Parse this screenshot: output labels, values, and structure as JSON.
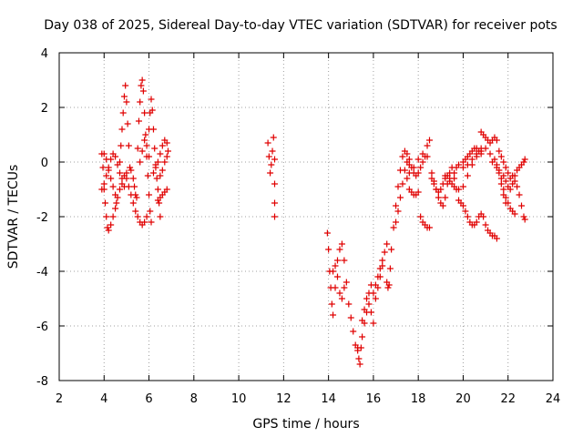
{
  "chart_data": {
    "type": "scatter",
    "title": "Day 038 of 2025, Sidereal Day-to-day VTEC variation (SDTVAR) for receiver pots",
    "xlabel": "GPS time / hours",
    "ylabel": "SDTVAR / TECUs",
    "xlim": [
      2,
      24
    ],
    "ylim": [
      -8,
      4
    ],
    "xticks": [
      "2",
      "4",
      "6",
      "8",
      "10",
      "12",
      "14",
      "16",
      "18",
      "20",
      "22",
      "24"
    ],
    "yticks": [
      "-8",
      "-6",
      "-4",
      "-2",
      "0",
      "2",
      "4"
    ],
    "grid": true,
    "marker": "plus",
    "color": "#e00000",
    "series": [
      {
        "name": "SDTVAR",
        "points": [
          [
            3.9,
            0.3
          ],
          [
            3.95,
            -0.2
          ],
          [
            4.0,
            -1.0
          ],
          [
            4.05,
            -1.5
          ],
          [
            4.1,
            -2.0
          ],
          [
            4.15,
            -2.4
          ],
          [
            4.2,
            -2.5
          ],
          [
            4.3,
            -2.3
          ],
          [
            4.4,
            -2.0
          ],
          [
            4.5,
            -1.7
          ],
          [
            4.6,
            -1.3
          ],
          [
            4.7,
            -1.0
          ],
          [
            4.8,
            -0.8
          ],
          [
            4.9,
            -0.5
          ],
          [
            5.0,
            -0.4
          ],
          [
            3.9,
            -1.0
          ],
          [
            4.0,
            -0.8
          ],
          [
            4.1,
            -0.5
          ],
          [
            4.2,
            -0.2
          ],
          [
            4.3,
            0.1
          ],
          [
            4.4,
            0.3
          ],
          [
            4.5,
            0.2
          ],
          [
            4.6,
            -0.1
          ],
          [
            4.7,
            -0.4
          ],
          [
            4.8,
            -0.6
          ],
          [
            4.9,
            -0.9
          ],
          [
            4.0,
            0.3
          ],
          [
            4.1,
            0.1
          ],
          [
            4.2,
            -0.3
          ],
          [
            4.3,
            -0.6
          ],
          [
            4.4,
            -0.9
          ],
          [
            4.5,
            -1.2
          ],
          [
            4.55,
            -1.5
          ],
          [
            4.7,
            0.0
          ],
          [
            4.75,
            0.6
          ],
          [
            4.8,
            1.2
          ],
          [
            4.85,
            1.8
          ],
          [
            4.9,
            2.4
          ],
          [
            4.95,
            2.8
          ],
          [
            5.0,
            2.2
          ],
          [
            5.05,
            1.4
          ],
          [
            5.1,
            0.6
          ],
          [
            5.15,
            -0.2
          ],
          [
            5.0,
            -0.6
          ],
          [
            5.1,
            -0.9
          ],
          [
            5.2,
            -1.2
          ],
          [
            5.3,
            -1.5
          ],
          [
            5.4,
            -1.8
          ],
          [
            5.5,
            -2.0
          ],
          [
            5.6,
            -2.2
          ],
          [
            5.7,
            -2.3
          ],
          [
            5.8,
            -2.2
          ],
          [
            5.9,
            -2.0
          ],
          [
            5.2,
            -0.3
          ],
          [
            5.3,
            -0.6
          ],
          [
            5.35,
            -0.9
          ],
          [
            5.4,
            -1.2
          ],
          [
            5.45,
            -1.3
          ],
          [
            5.5,
            0.5
          ],
          [
            5.55,
            1.5
          ],
          [
            5.6,
            2.2
          ],
          [
            5.65,
            2.8
          ],
          [
            5.7,
            3.0
          ],
          [
            5.75,
            2.6
          ],
          [
            5.8,
            1.8
          ],
          [
            5.85,
            1.0
          ],
          [
            5.9,
            0.2
          ],
          [
            5.95,
            -0.5
          ],
          [
            6.0,
            -1.2
          ],
          [
            6.05,
            -1.8
          ],
          [
            6.1,
            -2.2
          ],
          [
            5.6,
            0.0
          ],
          [
            5.7,
            0.4
          ],
          [
            5.8,
            0.8
          ],
          [
            5.9,
            0.6
          ],
          [
            6.0,
            0.2
          ],
          [
            6.0,
            1.2
          ],
          [
            6.05,
            1.8
          ],
          [
            6.1,
            2.3
          ],
          [
            6.15,
            1.9
          ],
          [
            6.2,
            1.2
          ],
          [
            6.25,
            0.5
          ],
          [
            6.3,
            -0.1
          ],
          [
            6.35,
            -0.6
          ],
          [
            6.4,
            -1.0
          ],
          [
            6.45,
            -1.5
          ],
          [
            6.5,
            -2.0
          ],
          [
            6.2,
            -0.4
          ],
          [
            6.3,
            -0.2
          ],
          [
            6.4,
            0.0
          ],
          [
            6.5,
            0.3
          ],
          [
            6.6,
            0.6
          ],
          [
            6.7,
            0.8
          ],
          [
            6.8,
            0.7
          ],
          [
            6.5,
            -0.5
          ],
          [
            6.6,
            -0.3
          ],
          [
            6.7,
            0.0
          ],
          [
            6.8,
            0.2
          ],
          [
            6.85,
            0.4
          ],
          [
            6.4,
            -1.4
          ],
          [
            6.5,
            -1.3
          ],
          [
            6.6,
            -1.2
          ],
          [
            6.7,
            -1.1
          ],
          [
            6.8,
            -1.0
          ],
          [
            11.3,
            0.7
          ],
          [
            11.35,
            0.2
          ],
          [
            11.4,
            -0.4
          ],
          [
            11.45,
            -0.1
          ],
          [
            11.5,
            0.4
          ],
          [
            11.55,
            0.9
          ],
          [
            11.6,
            0.1
          ],
          [
            11.6,
            -0.8
          ],
          [
            11.6,
            -1.5
          ],
          [
            11.6,
            -2.0
          ],
          [
            13.95,
            -2.6
          ],
          [
            14.0,
            -3.2
          ],
          [
            14.05,
            -4.0
          ],
          [
            14.1,
            -4.6
          ],
          [
            14.15,
            -5.2
          ],
          [
            14.2,
            -5.6
          ],
          [
            14.3,
            -4.6
          ],
          [
            14.4,
            -3.6
          ],
          [
            14.5,
            -3.2
          ],
          [
            14.6,
            -3.0
          ],
          [
            14.7,
            -3.6
          ],
          [
            14.8,
            -4.4
          ],
          [
            14.9,
            -5.2
          ],
          [
            15.0,
            -5.7
          ],
          [
            15.1,
            -6.2
          ],
          [
            15.2,
            -6.7
          ],
          [
            15.3,
            -6.9
          ],
          [
            14.2,
            -4.0
          ],
          [
            14.3,
            -3.8
          ],
          [
            14.4,
            -4.2
          ],
          [
            14.5,
            -4.8
          ],
          [
            14.6,
            -5.0
          ],
          [
            14.7,
            -4.6
          ],
          [
            15.3,
            -6.8
          ],
          [
            15.35,
            -7.2
          ],
          [
            15.4,
            -7.4
          ],
          [
            15.45,
            -6.8
          ],
          [
            15.5,
            -6.4
          ],
          [
            15.6,
            -5.9
          ],
          [
            15.7,
            -5.5
          ],
          [
            15.8,
            -5.2
          ],
          [
            15.9,
            -5.5
          ],
          [
            16.0,
            -5.9
          ],
          [
            15.5,
            -5.8
          ],
          [
            15.6,
            -5.4
          ],
          [
            15.7,
            -5.0
          ],
          [
            15.8,
            -4.8
          ],
          [
            15.9,
            -4.5
          ],
          [
            16.0,
            -4.8
          ],
          [
            16.1,
            -4.5
          ],
          [
            16.2,
            -4.2
          ],
          [
            16.3,
            -3.9
          ],
          [
            16.4,
            -3.6
          ],
          [
            16.5,
            -3.3
          ],
          [
            16.6,
            -3.0
          ],
          [
            16.1,
            -5.0
          ],
          [
            16.2,
            -4.6
          ],
          [
            16.3,
            -4.2
          ],
          [
            16.4,
            -3.8
          ],
          [
            16.6,
            -4.4
          ],
          [
            16.65,
            -4.6
          ],
          [
            16.7,
            -4.5
          ],
          [
            16.75,
            -3.9
          ],
          [
            16.8,
            -3.2
          ],
          [
            16.9,
            -2.4
          ],
          [
            17.0,
            -1.6
          ],
          [
            17.1,
            -0.9
          ],
          [
            17.2,
            -0.3
          ],
          [
            17.3,
            0.2
          ],
          [
            17.4,
            0.4
          ],
          [
            17.5,
            0.3
          ],
          [
            17.6,
            0.1
          ],
          [
            17.7,
            -0.2
          ],
          [
            17.8,
            -0.4
          ],
          [
            17.9,
            -0.5
          ],
          [
            18.0,
            -0.4
          ],
          [
            18.1,
            -0.2
          ],
          [
            18.2,
            0.0
          ],
          [
            18.3,
            0.2
          ],
          [
            18.4,
            0.6
          ],
          [
            18.5,
            0.8
          ],
          [
            17.0,
            -2.2
          ],
          [
            17.1,
            -1.8
          ],
          [
            17.2,
            -1.3
          ],
          [
            17.3,
            -0.8
          ],
          [
            17.4,
            -0.3
          ],
          [
            17.5,
            0.0
          ],
          [
            17.6,
            -0.1
          ],
          [
            17.5,
            -0.6
          ],
          [
            17.6,
            -0.4
          ],
          [
            17.8,
            -0.2
          ],
          [
            18.0,
            0.1
          ],
          [
            18.2,
            0.3
          ],
          [
            18.4,
            0.2
          ],
          [
            17.6,
            -1.0
          ],
          [
            17.7,
            -1.1
          ],
          [
            17.8,
            -1.2
          ],
          [
            17.9,
            -1.2
          ],
          [
            18.0,
            -1.1
          ],
          [
            18.1,
            -2.0
          ],
          [
            18.2,
            -2.2
          ],
          [
            18.3,
            -2.3
          ],
          [
            18.4,
            -2.4
          ],
          [
            18.5,
            -2.4
          ],
          [
            18.6,
            -0.6
          ],
          [
            18.7,
            -0.8
          ],
          [
            18.8,
            -1.0
          ],
          [
            18.9,
            -1.1
          ],
          [
            19.0,
            -1.0
          ],
          [
            19.1,
            -0.8
          ],
          [
            19.2,
            -0.6
          ],
          [
            19.3,
            -0.5
          ],
          [
            19.4,
            -0.6
          ],
          [
            19.5,
            -0.8
          ],
          [
            18.6,
            -0.4
          ],
          [
            18.7,
            -0.7
          ],
          [
            18.8,
            -1.0
          ],
          [
            18.9,
            -1.3
          ],
          [
            19.0,
            -1.5
          ],
          [
            19.1,
            -1.6
          ],
          [
            19.2,
            -1.3
          ],
          [
            19.3,
            -0.8
          ],
          [
            19.4,
            -0.4
          ],
          [
            19.5,
            -0.2
          ],
          [
            19.6,
            -0.6
          ],
          [
            19.7,
            -1.0
          ],
          [
            19.8,
            -1.4
          ],
          [
            19.9,
            -1.5
          ],
          [
            20.0,
            -1.6
          ],
          [
            20.1,
            -1.8
          ],
          [
            20.2,
            -2.0
          ],
          [
            20.3,
            -2.2
          ],
          [
            20.4,
            -2.3
          ],
          [
            20.5,
            -2.3
          ],
          [
            20.6,
            -2.2
          ],
          [
            20.7,
            -2.0
          ],
          [
            20.8,
            -1.9
          ],
          [
            19.2,
            -0.5
          ],
          [
            19.4,
            -0.7
          ],
          [
            19.6,
            -0.9
          ],
          [
            19.8,
            -1.0
          ],
          [
            20.0,
            -0.9
          ],
          [
            20.2,
            -0.5
          ],
          [
            20.4,
            -0.1
          ],
          [
            20.6,
            0.2
          ],
          [
            20.8,
            0.4
          ],
          [
            21.0,
            0.5
          ],
          [
            19.6,
            -0.4
          ],
          [
            19.7,
            -0.2
          ],
          [
            19.8,
            -0.1
          ],
          [
            20.0,
            -0.2
          ],
          [
            20.2,
            -0.1
          ],
          [
            20.4,
            0.1
          ],
          [
            20.6,
            0.3
          ],
          [
            20.8,
            0.5
          ],
          [
            20.0,
            0.0
          ],
          [
            20.1,
            0.1
          ],
          [
            20.2,
            0.2
          ],
          [
            20.3,
            0.3
          ],
          [
            20.4,
            0.4
          ],
          [
            20.5,
            0.5
          ],
          [
            20.6,
            0.5
          ],
          [
            20.7,
            0.4
          ],
          [
            20.8,
            0.3
          ],
          [
            20.8,
            1.1
          ],
          [
            20.9,
            1.0
          ],
          [
            21.0,
            0.9
          ],
          [
            21.1,
            0.8
          ],
          [
            21.2,
            0.7
          ],
          [
            21.3,
            0.8
          ],
          [
            21.4,
            0.9
          ],
          [
            21.5,
            0.8
          ],
          [
            20.9,
            -2.0
          ],
          [
            21.0,
            -2.3
          ],
          [
            21.1,
            -2.5
          ],
          [
            21.2,
            -2.6
          ],
          [
            21.3,
            -2.7
          ],
          [
            21.4,
            -2.7
          ],
          [
            21.5,
            -2.8
          ],
          [
            21.2,
            0.3
          ],
          [
            21.4,
            0.1
          ],
          [
            21.5,
            -0.1
          ],
          [
            21.6,
            -0.3
          ],
          [
            21.7,
            -0.6
          ],
          [
            21.8,
            -1.0
          ],
          [
            21.9,
            -1.3
          ],
          [
            22.0,
            -1.5
          ],
          [
            22.1,
            -1.7
          ],
          [
            22.2,
            -1.8
          ],
          [
            22.3,
            -1.9
          ],
          [
            21.3,
            0.0
          ],
          [
            21.5,
            -0.2
          ],
          [
            21.6,
            -0.4
          ],
          [
            21.7,
            -0.8
          ],
          [
            21.8,
            -1.2
          ],
          [
            21.9,
            -1.5
          ],
          [
            21.6,
            0.4
          ],
          [
            21.7,
            0.2
          ],
          [
            21.8,
            0.0
          ],
          [
            21.9,
            -0.2
          ],
          [
            22.0,
            -0.4
          ],
          [
            22.1,
            -0.6
          ],
          [
            22.2,
            -0.5
          ],
          [
            22.3,
            -0.7
          ],
          [
            22.4,
            -0.9
          ],
          [
            22.5,
            -1.2
          ],
          [
            22.6,
            -1.6
          ],
          [
            22.7,
            -2.0
          ],
          [
            22.75,
            -2.1
          ],
          [
            21.8,
            -0.5
          ],
          [
            21.9,
            -0.7
          ],
          [
            22.0,
            -0.9
          ],
          [
            22.1,
            -1.0
          ],
          [
            22.2,
            -0.8
          ],
          [
            22.3,
            -0.5
          ],
          [
            22.4,
            -0.3
          ],
          [
            22.5,
            -0.2
          ],
          [
            22.6,
            -0.1
          ],
          [
            22.7,
            0.0
          ],
          [
            22.75,
            0.1
          ]
        ]
      }
    ]
  }
}
